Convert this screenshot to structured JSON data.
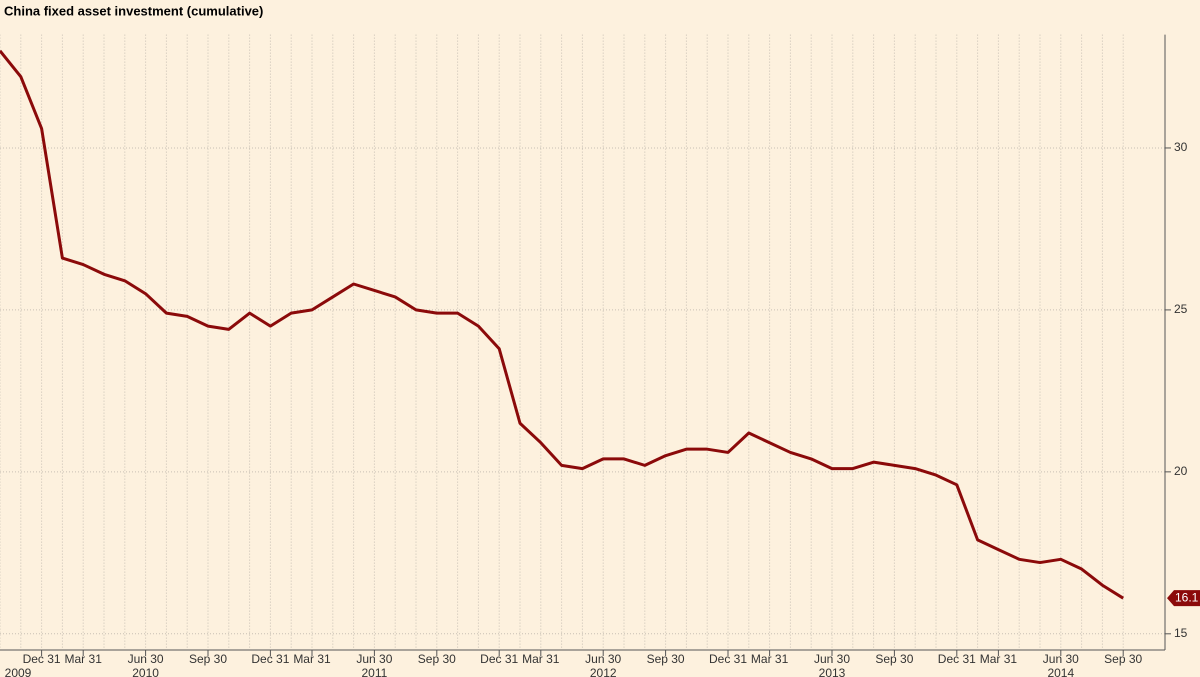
{
  "chart_data": {
    "type": "line",
    "title": "China fixed asset investment (cumulative)",
    "x": [
      "2009-10-31",
      "2009-11-30",
      "2009-12-31",
      "2010-02-28",
      "2010-03-31",
      "2010-04-30",
      "2010-05-31",
      "2010-06-30",
      "2010-07-31",
      "2010-08-31",
      "2010-09-30",
      "2010-10-31",
      "2010-11-30",
      "2010-12-31",
      "2011-02-28",
      "2011-03-31",
      "2011-04-30",
      "2011-05-31",
      "2011-06-30",
      "2011-07-31",
      "2011-08-31",
      "2011-09-30",
      "2011-10-31",
      "2011-11-30",
      "2011-12-31",
      "2012-02-29",
      "2012-03-31",
      "2012-04-30",
      "2012-05-31",
      "2012-06-30",
      "2012-07-31",
      "2012-08-31",
      "2012-09-30",
      "2012-10-31",
      "2012-11-30",
      "2012-12-31",
      "2013-02-28",
      "2013-03-31",
      "2013-04-30",
      "2013-05-31",
      "2013-06-30",
      "2013-07-31",
      "2013-08-31",
      "2013-09-30",
      "2013-10-31",
      "2013-11-30",
      "2013-12-31",
      "2014-02-28",
      "2014-03-31",
      "2014-04-30",
      "2014-05-31",
      "2014-06-30",
      "2014-07-31",
      "2014-08-31",
      "2014-09-30"
    ],
    "series": [
      {
        "color": "#8b0a0a",
        "values": [
          33.0,
          32.2,
          30.6,
          26.6,
          26.4,
          26.1,
          25.9,
          25.5,
          24.9,
          24.8,
          24.5,
          24.4,
          24.9,
          24.5,
          24.9,
          25.0,
          25.4,
          25.8,
          25.6,
          25.4,
          25.0,
          24.9,
          24.9,
          24.5,
          23.8,
          21.5,
          20.9,
          20.2,
          20.1,
          20.4,
          20.4,
          20.2,
          20.5,
          20.7,
          20.7,
          20.6,
          21.2,
          20.9,
          20.6,
          20.4,
          20.1,
          20.1,
          20.3,
          20.2,
          20.1,
          19.9,
          19.6,
          17.9,
          17.6,
          17.3,
          17.2,
          17.3,
          17.0,
          16.5,
          16.1
        ]
      }
    ],
    "show_last_value": true,
    "ylim": [
      14.5,
      33.5
    ],
    "yticks": [
      15,
      20,
      25,
      30
    ],
    "grid": true,
    "xticks": [
      {
        "value": "2009-12-31",
        "label": "Dec 31"
      },
      {
        "value": "2010-03-31",
        "label": "Mar 31"
      },
      {
        "value": "2010-06-30",
        "label": "Jun 30"
      },
      {
        "value": "2010-09-30",
        "label": "Sep 30"
      },
      {
        "value": "2010-12-31",
        "label": "Dec 31"
      },
      {
        "value": "2011-03-31",
        "label": "Mar 31"
      },
      {
        "value": "2011-06-30",
        "label": "Jun 30"
      },
      {
        "value": "2011-09-30",
        "label": "Sep 30"
      },
      {
        "value": "2011-12-31",
        "label": "Dec 31"
      },
      {
        "value": "2012-03-31",
        "label": "Mar 31"
      },
      {
        "value": "2012-06-30",
        "label": "Jun 30"
      },
      {
        "value": "2012-09-30",
        "label": "Sep 30"
      },
      {
        "value": "2012-12-31",
        "label": "Dec 31"
      },
      {
        "value": "2013-03-31",
        "label": "Mar 31"
      },
      {
        "value": "2013-06-30",
        "label": "Jun 30"
      },
      {
        "value": "2013-09-30",
        "label": "Sep 30"
      },
      {
        "value": "2013-12-31",
        "label": "Dec 31"
      },
      {
        "value": "2014-03-31",
        "label": "Mar 31"
      },
      {
        "value": "2014-06-30",
        "label": "Jun 30"
      },
      {
        "value": "2014-09-30",
        "label": "Sep 30"
      }
    ],
    "year_labels": [
      {
        "value": "2009-10-31",
        "label": "2009"
      },
      {
        "value": "2010-06-30",
        "label": "2010"
      },
      {
        "value": "2011-06-30",
        "label": "2011"
      },
      {
        "value": "2012-06-30",
        "label": "2012"
      },
      {
        "value": "2013-06-30",
        "label": "2013"
      },
      {
        "value": "2014-06-30",
        "label": "2014"
      }
    ]
  }
}
